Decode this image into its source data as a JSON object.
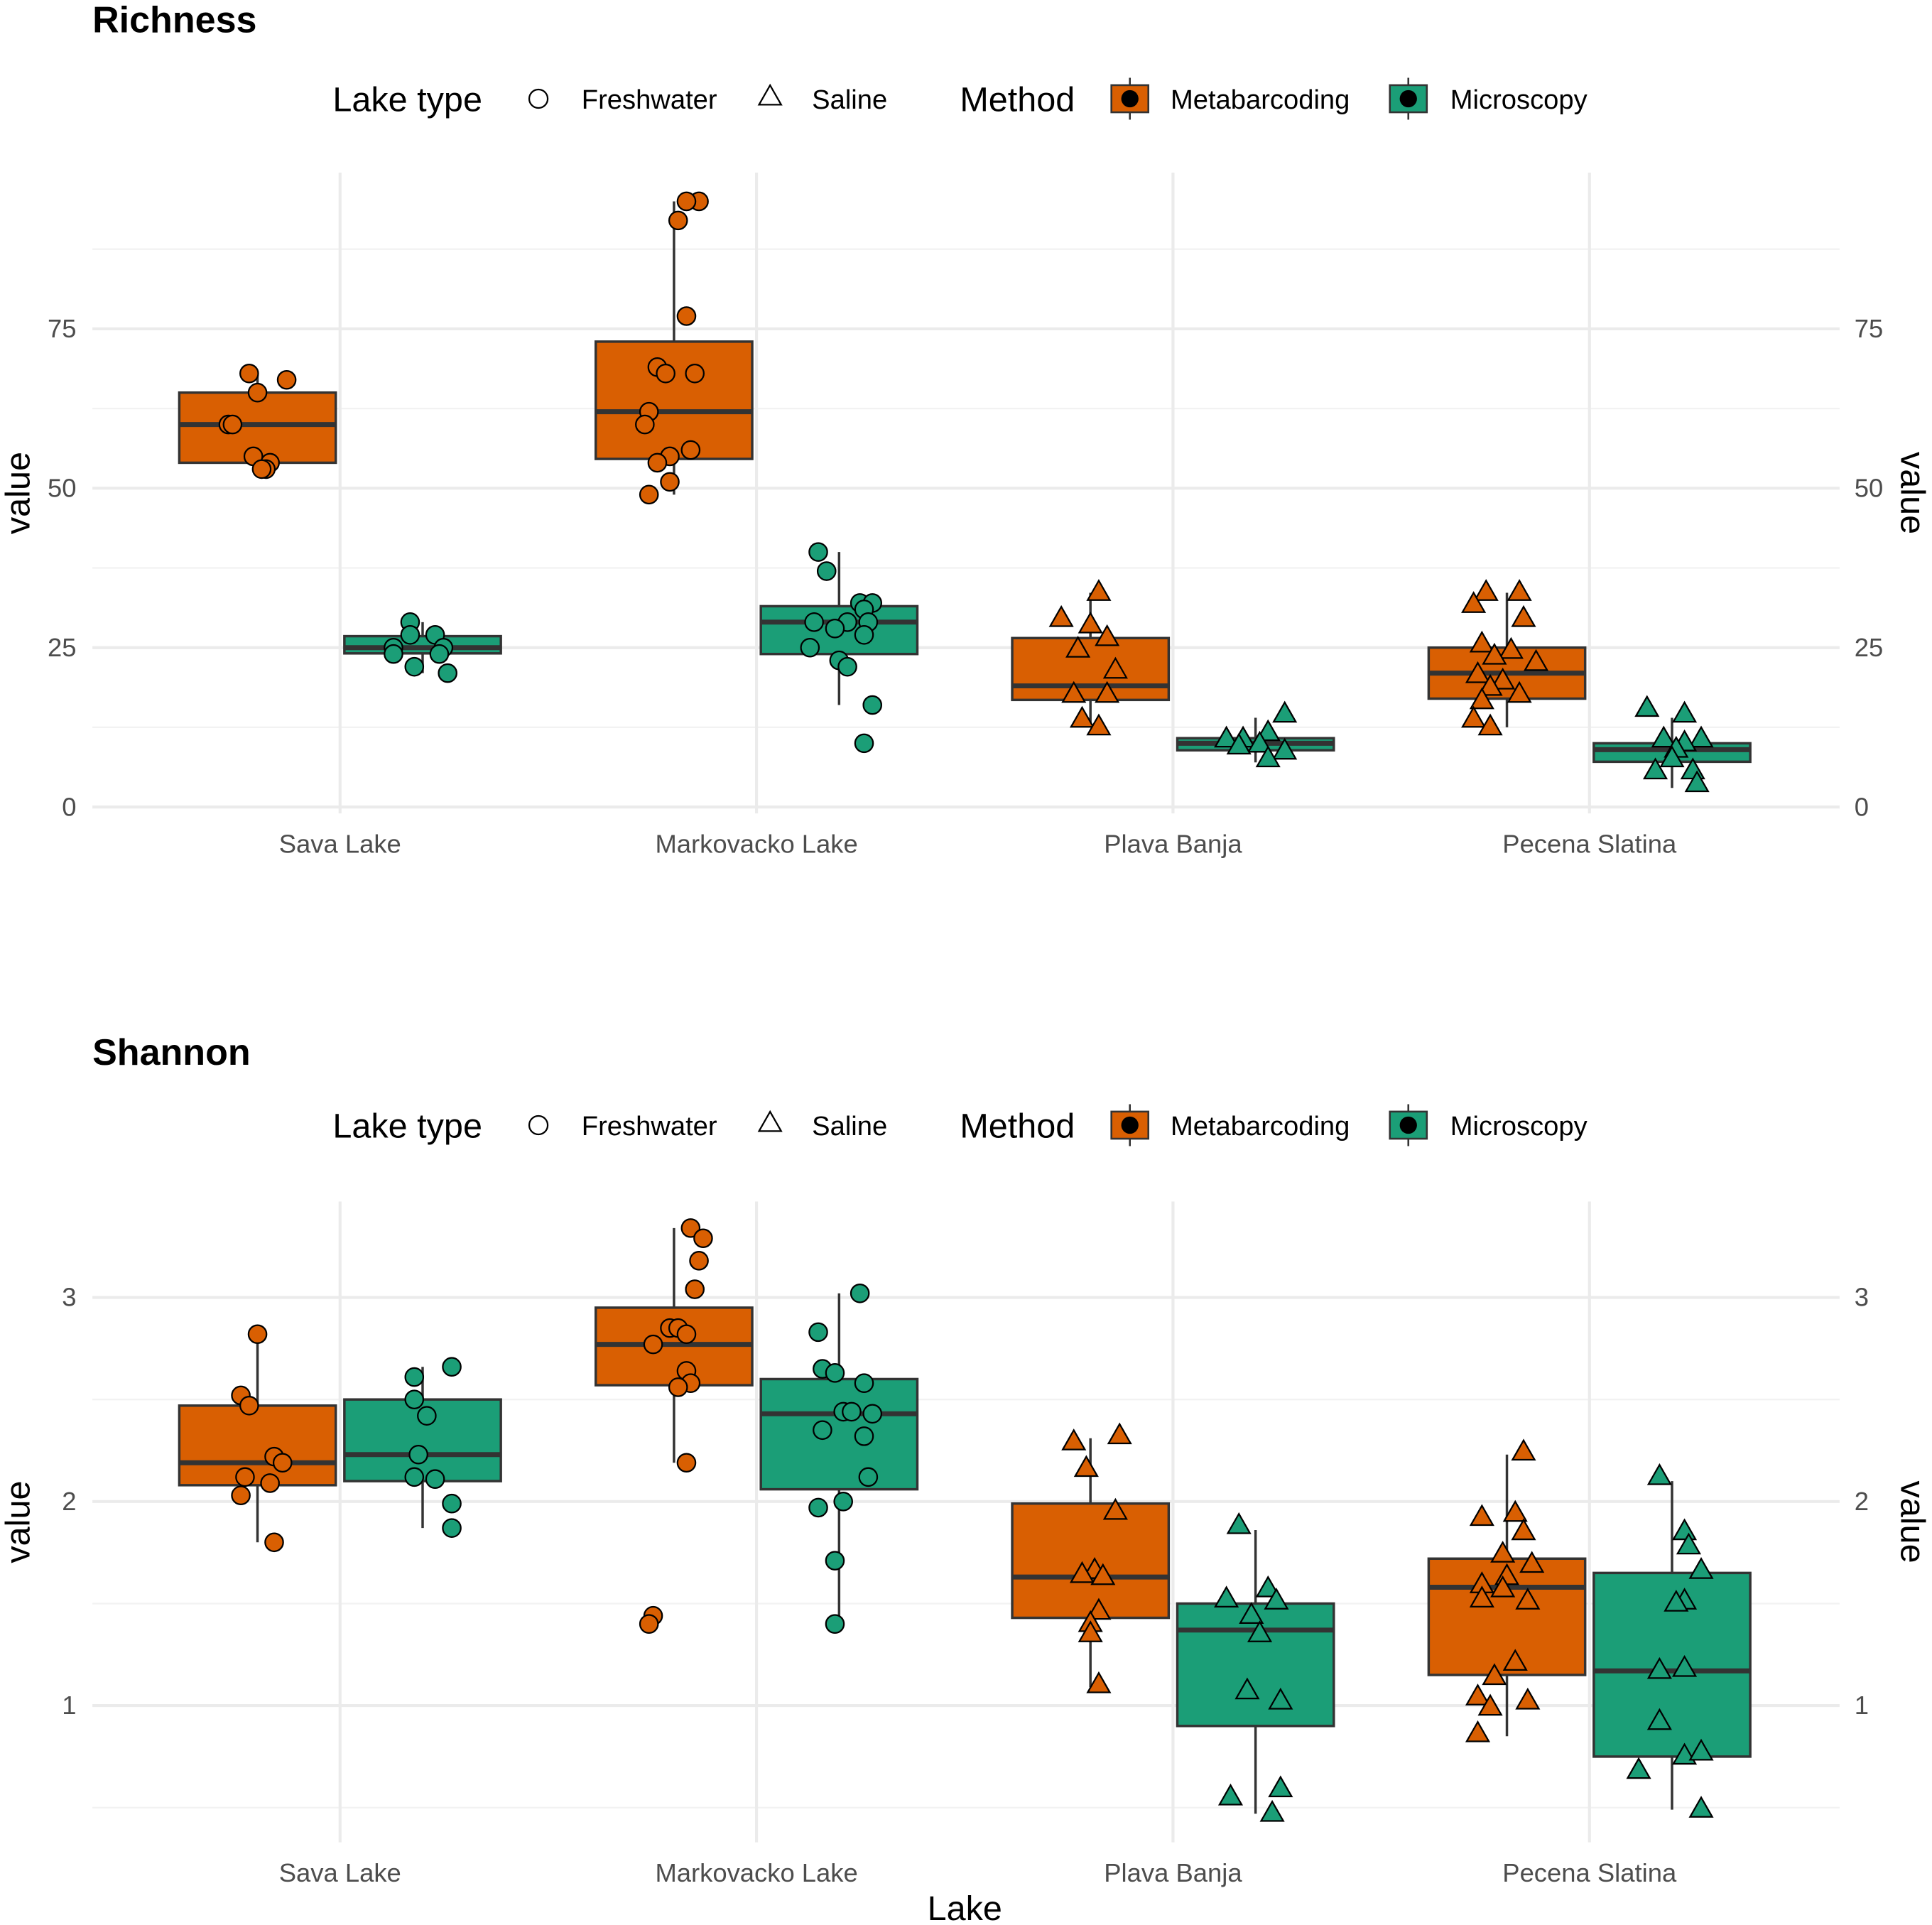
{
  "colors": {
    "Metabarcoding": "#D95F02",
    "Microscopy": "#1B9E77"
  },
  "legend": {
    "lake_type_title": "Lake type",
    "lake_types": [
      "Freshwater",
      "Saline"
    ],
    "method_title": "Method",
    "methods": [
      "Metabarcoding",
      "Microscopy"
    ]
  },
  "x_title": "Lake",
  "chart_data": [
    {
      "type": "box",
      "title": "Richness",
      "ylabel": "value",
      "xlabel": "Lake",
      "categories": [
        "Sava Lake",
        "Markovacko Lake",
        "Plava Banja",
        "Pecena Slatina"
      ],
      "lake_type": [
        "Freshwater",
        "Freshwater",
        "Saline",
        "Saline"
      ],
      "ylim": [
        -1,
        99.5
      ],
      "yticks": [
        0,
        25,
        50,
        75
      ],
      "yminor": [
        12.5,
        37.5,
        62.5,
        87.5
      ],
      "grid": true,
      "legend_position": "top",
      "groups": [
        {
          "lake": 0,
          "method": "Metabarcoding",
          "box": [
            54,
            60,
            65
          ],
          "whiskers": [
            53,
            68
          ],
          "points": [
            [
              -0.02,
              68
            ],
            [
              0.07,
              67
            ],
            [
              0,
              65
            ],
            [
              -0.07,
              60
            ],
            [
              -0.06,
              60
            ],
            [
              -0.01,
              55
            ],
            [
              0.03,
              54
            ],
            [
              0.02,
              53
            ],
            [
              0.01,
              53
            ]
          ]
        },
        {
          "lake": 0,
          "method": "Microscopy",
          "box": [
            24.1,
            25,
            26.8
          ],
          "whiskers": [
            21,
            29
          ],
          "points": [
            [
              -0.03,
              29
            ],
            [
              -0.03,
              27
            ],
            [
              0.03,
              27
            ],
            [
              -0.07,
              25
            ],
            [
              0.05,
              25
            ],
            [
              -0.07,
              24
            ],
            [
              0.04,
              24
            ],
            [
              -0.02,
              22
            ],
            [
              0.06,
              21
            ]
          ]
        },
        {
          "lake": 1,
          "method": "Metabarcoding",
          "box": [
            54.6,
            62,
            73
          ],
          "whiskers": [
            49,
            95
          ],
          "points": [
            [
              0.06,
              95
            ],
            [
              0.03,
              95
            ],
            [
              0.01,
              92
            ],
            [
              0.03,
              77
            ],
            [
              -0.04,
              69
            ],
            [
              -0.02,
              68
            ],
            [
              0.05,
              68
            ],
            [
              -0.06,
              62
            ],
            [
              -0.07,
              60
            ],
            [
              0.04,
              56
            ],
            [
              -0.01,
              55
            ],
            [
              -0.04,
              54
            ],
            [
              -0.01,
              51
            ],
            [
              -0.06,
              49
            ]
          ]
        },
        {
          "lake": 1,
          "method": "Microscopy",
          "box": [
            24,
            29,
            31.5
          ],
          "whiskers": [
            16,
            40
          ],
          "points": [
            [
              -0.05,
              40
            ],
            [
              -0.03,
              37
            ],
            [
              0.05,
              32
            ],
            [
              0.08,
              32
            ],
            [
              0.06,
              31
            ],
            [
              -0.06,
              29
            ],
            [
              0.02,
              29
            ],
            [
              0.07,
              29
            ],
            [
              -0.01,
              28
            ],
            [
              0.06,
              27
            ],
            [
              -0.07,
              25
            ],
            [
              0,
              23
            ],
            [
              0.02,
              22
            ],
            [
              0.08,
              16
            ],
            [
              0.06,
              10
            ]
          ]
        },
        {
          "lake": 2,
          "method": "Metabarcoding",
          "box": [
            16.8,
            19,
            26.5
          ],
          "whiskers": [
            12.5,
            33.6
          ],
          "points": [
            [
              0.02,
              33.6
            ],
            [
              -0.07,
              29.5
            ],
            [
              0,
              28.5
            ],
            [
              0.04,
              26.5
            ],
            [
              -0.03,
              24.7
            ],
            [
              0.06,
              21.4
            ],
            [
              -0.04,
              17.6
            ],
            [
              0.04,
              17.6
            ],
            [
              -0.02,
              13.7
            ],
            [
              0.02,
              12.5
            ]
          ]
        },
        {
          "lake": 2,
          "method": "Microscopy",
          "box": [
            8.9,
            10,
            10.8
          ],
          "whiskers": [
            7,
            14
          ],
          "points": [
            [
              0.07,
              14.5
            ],
            [
              0.03,
              11.6
            ],
            [
              -0.07,
              10.6
            ],
            [
              -0.03,
              10.6
            ],
            [
              0.01,
              9.8
            ],
            [
              -0.04,
              9.5
            ],
            [
              0.07,
              8.7
            ],
            [
              0.03,
              7.5
            ]
          ]
        },
        {
          "lake": 3,
          "method": "Metabarcoding",
          "box": [
            17,
            21,
            25
          ],
          "whiskers": [
            12.5,
            33.6
          ],
          "points": [
            [
              -0.05,
              33.6
            ],
            [
              0.03,
              33.6
            ],
            [
              -0.08,
              31.7
            ],
            [
              0.04,
              29.5
            ],
            [
              -0.06,
              25.5
            ],
            [
              0.01,
              24.5
            ],
            [
              -0.03,
              23.6
            ],
            [
              0.07,
              22.6
            ],
            [
              -0.07,
              20.7
            ],
            [
              -0.01,
              19.7
            ],
            [
              -0.04,
              18.7
            ],
            [
              0.03,
              17.6
            ],
            [
              -0.06,
              16.6
            ],
            [
              -0.08,
              13.7
            ],
            [
              -0.04,
              12.5
            ]
          ]
        },
        {
          "lake": 3,
          "method": "Microscopy",
          "box": [
            7.1,
            9,
            10
          ],
          "whiskers": [
            3,
            14
          ],
          "points": [
            [
              -0.06,
              15.4
            ],
            [
              0.03,
              14.5
            ],
            [
              -0.02,
              10.6
            ],
            [
              0.07,
              10.6
            ],
            [
              0.03,
              10
            ],
            [
              0.01,
              9
            ],
            [
              0,
              7.5
            ],
            [
              -0.04,
              5.6
            ],
            [
              0.05,
              5.6
            ],
            [
              0.06,
              3.6
            ]
          ]
        }
      ]
    },
    {
      "type": "box",
      "title": "Shannon",
      "ylabel": "value",
      "xlabel": "Lake",
      "categories": [
        "Sava Lake",
        "Markovacko Lake",
        "Plava Banja",
        "Pecena Slatina"
      ],
      "lake_type": [
        "Freshwater",
        "Freshwater",
        "Saline",
        "Saline"
      ],
      "ylim": [
        0.33,
        3.47
      ],
      "yticks": [
        1,
        2,
        3
      ],
      "yminor": [
        0.5,
        1.5,
        2.5
      ],
      "grid": true,
      "legend_position": "top",
      "groups": [
        {
          "lake": 0,
          "method": "Metabarcoding",
          "box": [
            2.08,
            2.19,
            2.47
          ],
          "whiskers": [
            1.8,
            2.82
          ],
          "points": [
            [
              0,
              2.82
            ],
            [
              -0.04,
              2.52
            ],
            [
              -0.02,
              2.47
            ],
            [
              0.04,
              2.22
            ],
            [
              0.06,
              2.19
            ],
            [
              -0.03,
              2.12
            ],
            [
              0.03,
              2.09
            ],
            [
              -0.04,
              2.03
            ],
            [
              0.04,
              1.8
            ]
          ]
        },
        {
          "lake": 0,
          "method": "Microscopy",
          "box": [
            2.1,
            2.23,
            2.5
          ],
          "whiskers": [
            1.87,
            2.66
          ],
          "points": [
            [
              0.07,
              2.66
            ],
            [
              -0.02,
              2.61
            ],
            [
              -0.02,
              2.5
            ],
            [
              0.01,
              2.42
            ],
            [
              -0.01,
              2.23
            ],
            [
              -0.02,
              2.12
            ],
            [
              0.03,
              2.11
            ],
            [
              0.07,
              1.99
            ],
            [
              0.07,
              1.87
            ]
          ]
        },
        {
          "lake": 1,
          "method": "Metabarcoding",
          "box": [
            2.57,
            2.77,
            2.95
          ],
          "whiskers": [
            2.19,
            3.34
          ],
          "points": [
            [
              0.04,
              3.34
            ],
            [
              0.07,
              3.29
            ],
            [
              0.06,
              3.18
            ],
            [
              0.05,
              3.04
            ],
            [
              -0.01,
              2.85
            ],
            [
              0.01,
              2.85
            ],
            [
              0.03,
              2.82
            ],
            [
              -0.05,
              2.77
            ],
            [
              0.03,
              2.64
            ],
            [
              0.04,
              2.58
            ],
            [
              0.01,
              2.56
            ],
            [
              0.03,
              2.19
            ],
            [
              -0.05,
              1.44
            ],
            [
              -0.06,
              1.4
            ]
          ]
        },
        {
          "lake": 1,
          "method": "Microscopy",
          "box": [
            2.06,
            2.43,
            2.6
          ],
          "whiskers": [
            1.4,
            3.02
          ],
          "points": [
            [
              0.05,
              3.02
            ],
            [
              -0.05,
              2.83
            ],
            [
              -0.04,
              2.65
            ],
            [
              -0.01,
              2.63
            ],
            [
              0.06,
              2.58
            ],
            [
              0.01,
              2.44
            ],
            [
              0.03,
              2.44
            ],
            [
              0.08,
              2.43
            ],
            [
              -0.04,
              2.35
            ],
            [
              0.06,
              2.32
            ],
            [
              0.07,
              2.12
            ],
            [
              0.01,
              2.0
            ],
            [
              -0.05,
              1.97
            ],
            [
              -0.01,
              1.71
            ],
            [
              -0.01,
              1.4
            ]
          ]
        },
        {
          "lake": 2,
          "method": "Metabarcoding",
          "box": [
            1.43,
            1.63,
            1.99
          ],
          "whiskers": [
            1.09,
            2.31
          ],
          "points": [
            [
              0.07,
              2.32
            ],
            [
              -0.04,
              2.29
            ],
            [
              -0.01,
              2.16
            ],
            [
              0.06,
              1.95
            ],
            [
              0.01,
              1.66
            ],
            [
              -0.02,
              1.64
            ],
            [
              0.03,
              1.63
            ],
            [
              0.02,
              1.46
            ],
            [
              0,
              1.4
            ],
            [
              0,
              1.35
            ],
            [
              0.02,
              1.1
            ]
          ]
        },
        {
          "lake": 2,
          "method": "Microscopy",
          "box": [
            0.9,
            1.37,
            1.5
          ],
          "whiskers": [
            0.47,
            1.86
          ],
          "points": [
            [
              -0.04,
              1.88
            ],
            [
              0.03,
              1.57
            ],
            [
              -0.07,
              1.52
            ],
            [
              0.05,
              1.51
            ],
            [
              -0.01,
              1.44
            ],
            [
              0.01,
              1.35
            ],
            [
              -0.02,
              1.07
            ],
            [
              0.06,
              1.02
            ],
            [
              0.06,
              0.59
            ],
            [
              -0.06,
              0.55
            ],
            [
              0.04,
              0.47
            ]
          ]
        },
        {
          "lake": 3,
          "method": "Metabarcoding",
          "box": [
            1.15,
            1.58,
            1.72
          ],
          "whiskers": [
            0.85,
            2.23
          ],
          "points": [
            [
              0.04,
              2.24
            ],
            [
              0.02,
              1.94
            ],
            [
              -0.06,
              1.92
            ],
            [
              0.04,
              1.85
            ],
            [
              -0.01,
              1.74
            ],
            [
              0.06,
              1.69
            ],
            [
              0,
              1.63
            ],
            [
              -0.06,
              1.59
            ],
            [
              -0.01,
              1.57
            ],
            [
              -0.06,
              1.52
            ],
            [
              0.05,
              1.51
            ],
            [
              0.02,
              1.21
            ],
            [
              -0.03,
              1.14
            ],
            [
              -0.07,
              1.04
            ],
            [
              0.05,
              1.02
            ],
            [
              -0.04,
              0.99
            ],
            [
              -0.07,
              0.86
            ]
          ]
        },
        {
          "lake": 3,
          "method": "Microscopy",
          "box": [
            0.75,
            1.17,
            1.65
          ],
          "whiskers": [
            0.49,
            2.1
          ],
          "points": [
            [
              -0.03,
              2.12
            ],
            [
              0.03,
              1.85
            ],
            [
              0.04,
              1.78
            ],
            [
              0.07,
              1.66
            ],
            [
              0.03,
              1.51
            ],
            [
              0.01,
              1.5
            ],
            [
              0.03,
              1.18
            ],
            [
              -0.03,
              1.17
            ],
            [
              -0.03,
              0.92
            ],
            [
              0.03,
              0.75
            ],
            [
              0.07,
              0.77
            ],
            [
              -0.08,
              0.68
            ],
            [
              0.07,
              0.49
            ]
          ]
        }
      ]
    }
  ]
}
